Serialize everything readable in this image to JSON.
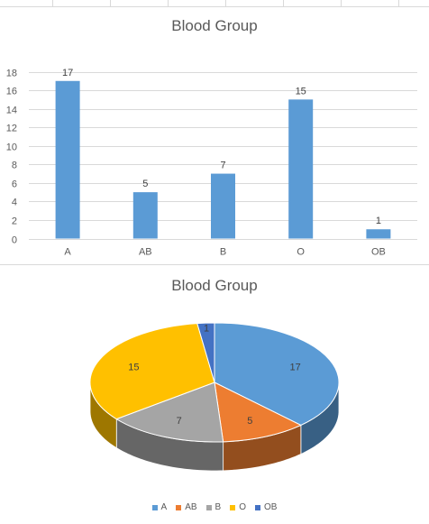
{
  "chart_data": [
    {
      "type": "bar",
      "title": "Blood Group",
      "categories": [
        "A",
        "AB",
        "B",
        "O",
        "OB"
      ],
      "values": [
        17,
        5,
        7,
        15,
        1
      ],
      "ylim": [
        0,
        18
      ],
      "yticks": [
        0,
        2,
        4,
        6,
        8,
        10,
        12,
        14,
        16,
        18
      ],
      "grid": true,
      "bar_color": "#5b9bd5",
      "data_labels": true
    },
    {
      "type": "pie",
      "title": "Blood Group",
      "categories": [
        "A",
        "AB",
        "B",
        "O",
        "OB"
      ],
      "values": [
        17,
        5,
        7,
        15,
        1
      ],
      "colors": [
        "#5b9bd5",
        "#ed7d31",
        "#a5a5a5",
        "#ffc000",
        "#4472c4"
      ],
      "style": "3d",
      "data_labels": true,
      "legend": "bottom"
    }
  ]
}
